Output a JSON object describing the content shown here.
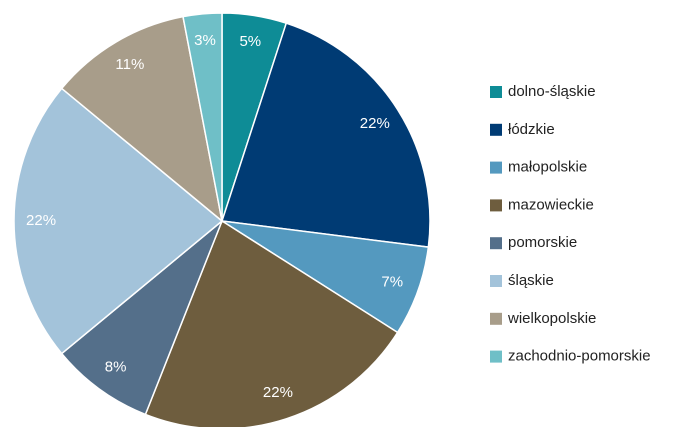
{
  "chart_data": {
    "type": "pie",
    "categories": [
      "dolno-śląskie",
      "łódzkie",
      "małopolskie",
      "mazowieckie",
      "pomorskie",
      "śląskie",
      "wielkopolskie",
      "zachodnio-pomorskie"
    ],
    "values": [
      5,
      22,
      7,
      22,
      8,
      22,
      11,
      3
    ],
    "value_labels": [
      "5%",
      "22%",
      "7%",
      "22%",
      "8%",
      "22%",
      "11%",
      "3%"
    ],
    "colors": [
      "#0e8c96",
      "#003b74",
      "#5499bf",
      "#6e5d3e",
      "#546f8a",
      "#a3c3da",
      "#a89d8a",
      "#6fbfc7"
    ],
    "legend": "right"
  }
}
